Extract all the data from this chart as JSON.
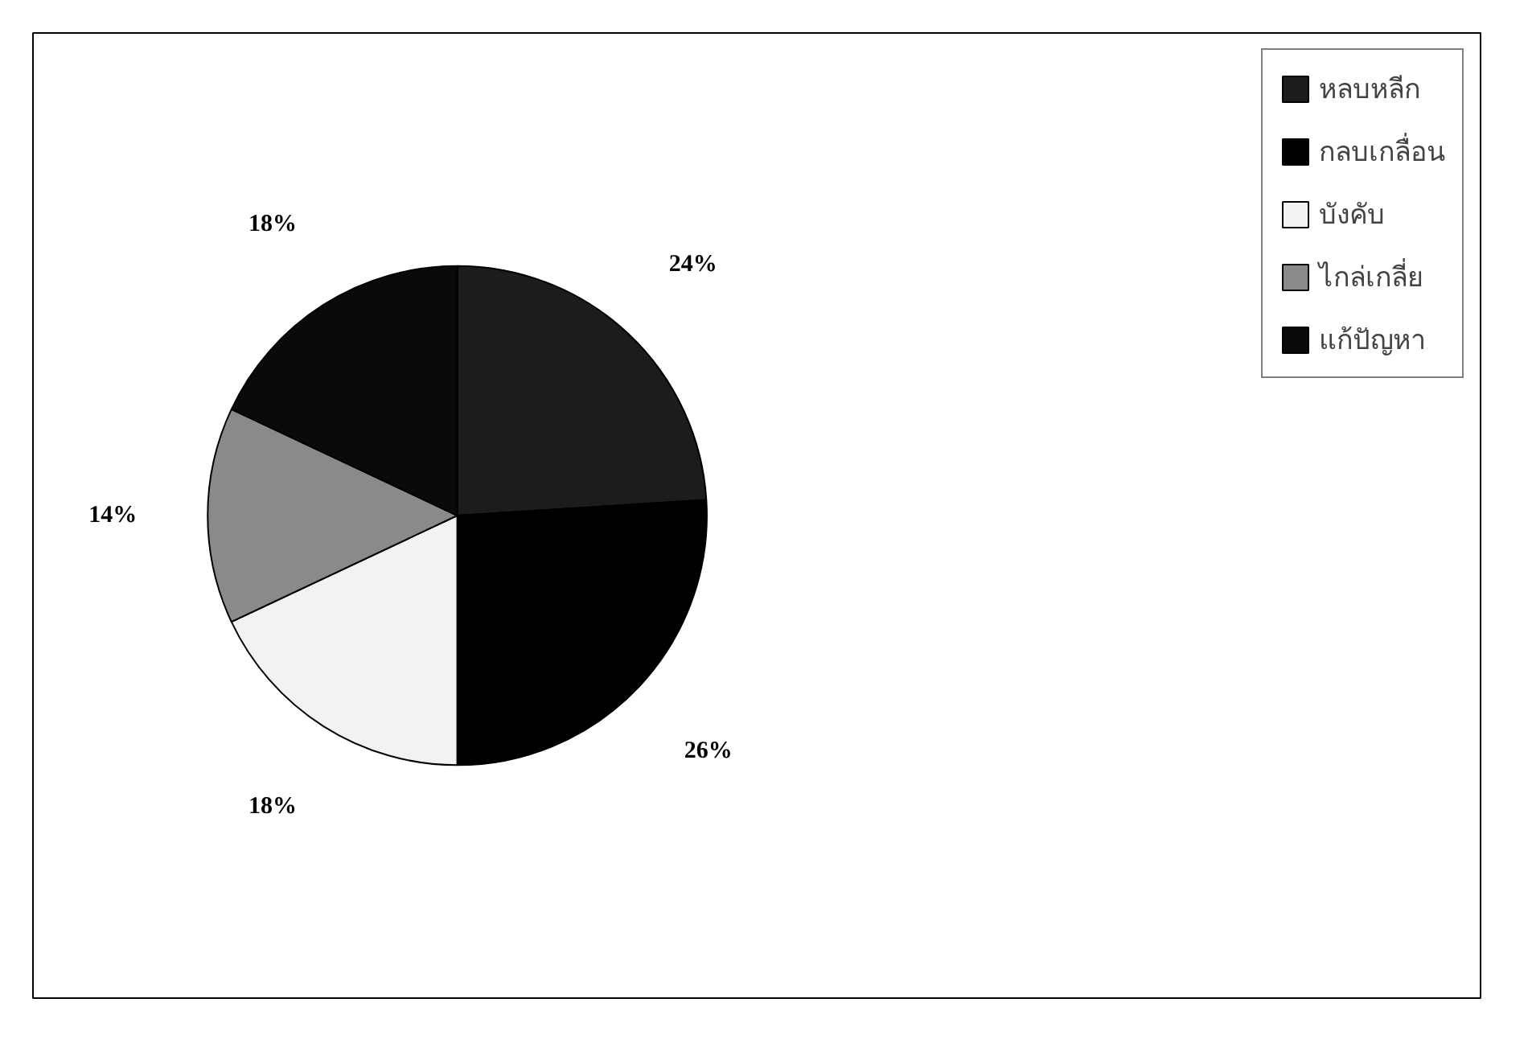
{
  "chart_data": {
    "type": "pie",
    "categories": [
      "หลบหลีก",
      "กลบเกลื่อน",
      "บังคับ",
      "ไกล่เกลี่ย",
      "แก้ปัญหา"
    ],
    "values": [
      24,
      26,
      18,
      14,
      18
    ],
    "colors": [
      "#1c1c1c",
      "#000000",
      "#f2f2f2",
      "#8a8a8a",
      "#0a0a0a"
    ],
    "value_labels": [
      "24%",
      "26%",
      "18%",
      "14%",
      "18%"
    ],
    "legend": "right"
  }
}
